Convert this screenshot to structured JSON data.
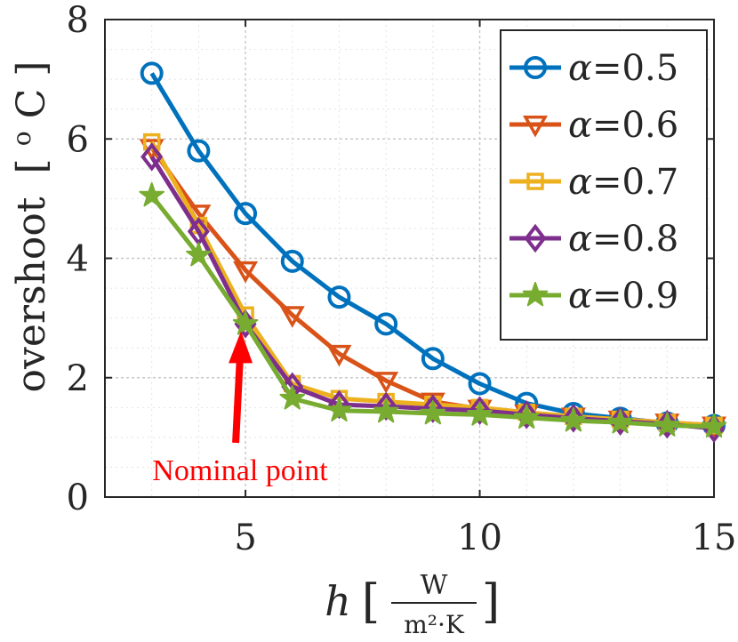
{
  "chart_data": {
    "type": "line",
    "title": "",
    "xlabel": "h",
    "xlabel_unit_open": "[",
    "xlabel_unit_num": "W",
    "xlabel_unit_den": "m²·K",
    "xlabel_unit_close": "]",
    "ylabel": "overshoot [°C]",
    "ylabel_text": "overshoot",
    "ylabel_unit": "[",
    "ylabel_unit_sup": "o",
    "ylabel_unit_c": "C",
    "ylabel_unit_close": "]",
    "xlim": [
      2,
      15
    ],
    "ylim": [
      0,
      8
    ],
    "xticks": [
      5,
      10,
      15
    ],
    "yticks": [
      0,
      2,
      4,
      6,
      8
    ],
    "xtick_labels": [
      "5",
      "10",
      "15"
    ],
    "ytick_labels": [
      "0",
      "2",
      "4",
      "6",
      "8"
    ],
    "grid": true,
    "legend_position": "top-right",
    "x": [
      3,
      4,
      5,
      6,
      7,
      8,
      9,
      10,
      11,
      12,
      13,
      14,
      15
    ],
    "series": [
      {
        "name": "α=0.5",
        "label_symbol": "α",
        "label_value": "=0.5",
        "color": "#0072BD",
        "marker": "circle",
        "values": [
          7.1,
          5.8,
          4.75,
          3.95,
          3.35,
          2.9,
          2.32,
          1.9,
          1.57,
          1.4,
          1.32,
          1.24,
          1.2
        ]
      },
      {
        "name": "α=0.6",
        "label_symbol": "α",
        "label_value": "=0.6",
        "color": "#D95319",
        "marker": "triangle-down",
        "values": [
          5.85,
          4.75,
          3.8,
          3.05,
          2.4,
          1.95,
          1.6,
          1.48,
          1.4,
          1.35,
          1.3,
          1.25,
          1.2
        ]
      },
      {
        "name": "α=0.7",
        "label_symbol": "α",
        "label_value": "=0.7",
        "color": "#EDB120",
        "marker": "square",
        "values": [
          5.95,
          4.55,
          3.05,
          1.9,
          1.65,
          1.6,
          1.55,
          1.5,
          1.42,
          1.35,
          1.3,
          1.25,
          1.2
        ]
      },
      {
        "name": "α=0.8",
        "label_symbol": "α",
        "label_value": "=0.8",
        "color": "#7E2F8E",
        "marker": "diamond",
        "values": [
          5.7,
          4.45,
          2.9,
          1.85,
          1.55,
          1.52,
          1.48,
          1.45,
          1.38,
          1.32,
          1.27,
          1.22,
          1.15
        ]
      },
      {
        "name": "α=0.9",
        "label_symbol": "α",
        "label_value": "=0.9",
        "color": "#77AC30",
        "marker": "star",
        "values": [
          5.05,
          4.05,
          2.9,
          1.65,
          1.45,
          1.43,
          1.4,
          1.38,
          1.33,
          1.28,
          1.25,
          1.2,
          1.18
        ]
      }
    ],
    "annotations": [
      {
        "text": "Nominal point",
        "color": "#ff0000",
        "points_to_x": 5,
        "points_to_y": 2.9
      }
    ]
  }
}
